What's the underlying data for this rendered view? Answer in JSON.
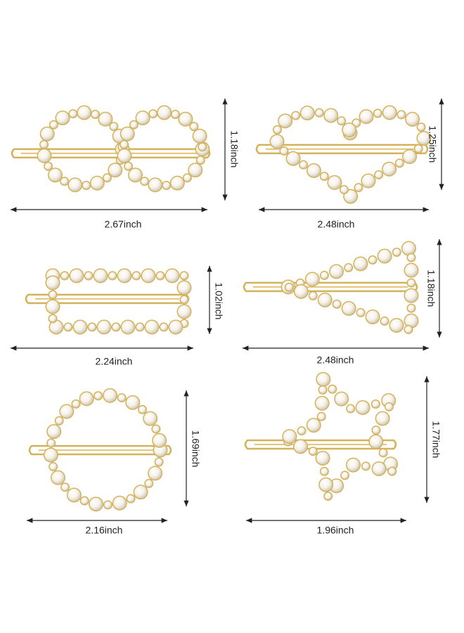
{
  "items": [
    {
      "width": "2.67inch",
      "height": "1.18inch"
    },
    {
      "width": "2.48inch",
      "height": "1.25inch"
    },
    {
      "width": "2.24inch",
      "height": "1.02inch"
    },
    {
      "width": "2.48inch",
      "height": "1.18inch"
    },
    {
      "width": "2.16inch",
      "height": "1.69inch"
    },
    {
      "width": "1.96inch",
      "height": "1.77inch"
    }
  ]
}
